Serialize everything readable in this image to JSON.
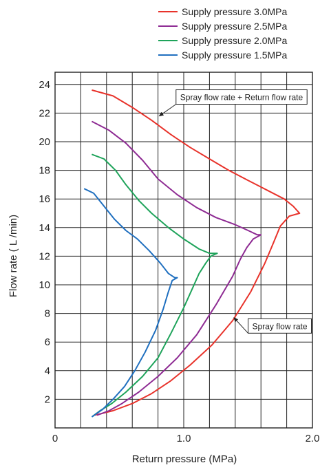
{
  "chart_data": {
    "type": "line",
    "title": "",
    "xlabel": "Return pressure (MPa)",
    "ylabel": "Flow rate ( L /min)",
    "xlim": [
      0,
      2.0
    ],
    "ylim": [
      0,
      25
    ],
    "grid": true,
    "legend_position": "top-right",
    "x_tick_labels": [
      {
        "value": 0,
        "label": "0"
      },
      {
        "value": 1.0,
        "label": "1.0"
      },
      {
        "value": 2.0,
        "label": "2.0"
      }
    ],
    "y_tick_labels": [
      {
        "value": 2,
        "label": "2"
      },
      {
        "value": 4,
        "label": "4"
      },
      {
        "value": 6,
        "label": "6"
      },
      {
        "value": 8,
        "label": "8"
      },
      {
        "value": 10,
        "label": "10"
      },
      {
        "value": 12,
        "label": "12"
      },
      {
        "value": 14,
        "label": "14"
      },
      {
        "value": 16,
        "label": "16"
      },
      {
        "value": 18,
        "label": "18"
      },
      {
        "value": 20,
        "label": "20"
      },
      {
        "value": 22,
        "label": "22"
      },
      {
        "value": 24,
        "label": "24"
      }
    ],
    "series": [
      {
        "name": "Supply pressure 3.0MPa",
        "color": "#e8322a",
        "points": [
          [
            0.29,
            23.6
          ],
          [
            0.45,
            23.2
          ],
          [
            0.6,
            22.4
          ],
          [
            0.75,
            21.5
          ],
          [
            0.9,
            20.5
          ],
          [
            1.05,
            19.6
          ],
          [
            1.2,
            18.8
          ],
          [
            1.35,
            18.0
          ],
          [
            1.5,
            17.3
          ],
          [
            1.65,
            16.6
          ],
          [
            1.78,
            16.0
          ],
          [
            1.85,
            15.5
          ],
          [
            1.9,
            15.0
          ],
          [
            1.82,
            14.8
          ],
          [
            1.75,
            14.1
          ],
          [
            1.7,
            13.0
          ],
          [
            1.63,
            11.5
          ],
          [
            1.52,
            9.5
          ],
          [
            1.38,
            7.5
          ],
          [
            1.22,
            5.8
          ],
          [
            1.05,
            4.4
          ],
          [
            0.9,
            3.3
          ],
          [
            0.75,
            2.4
          ],
          [
            0.6,
            1.7
          ],
          [
            0.45,
            1.2
          ],
          [
            0.36,
            1.0
          ],
          [
            0.31,
            0.9
          ]
        ]
      },
      {
        "name": "Supply pressure 2.5MPa",
        "color": "#8e2b93",
        "points": [
          [
            0.29,
            21.4
          ],
          [
            0.42,
            20.8
          ],
          [
            0.55,
            19.9
          ],
          [
            0.68,
            18.7
          ],
          [
            0.8,
            17.4
          ],
          [
            0.95,
            16.3
          ],
          [
            1.1,
            15.4
          ],
          [
            1.25,
            14.7
          ],
          [
            1.4,
            14.2
          ],
          [
            1.5,
            13.8
          ],
          [
            1.57,
            13.5
          ],
          [
            1.6,
            13.5
          ],
          [
            1.54,
            13.2
          ],
          [
            1.49,
            12.6
          ],
          [
            1.44,
            11.8
          ],
          [
            1.38,
            10.6
          ],
          [
            1.25,
            8.6
          ],
          [
            1.1,
            6.5
          ],
          [
            0.95,
            4.9
          ],
          [
            0.8,
            3.6
          ],
          [
            0.65,
            2.5
          ],
          [
            0.52,
            1.7
          ],
          [
            0.42,
            1.2
          ],
          [
            0.33,
            0.9
          ]
        ]
      },
      {
        "name": "Supply pressure 2.0MPa",
        "color": "#1ea35a",
        "points": [
          [
            0.29,
            19.1
          ],
          [
            0.38,
            18.8
          ],
          [
            0.47,
            18.0
          ],
          [
            0.55,
            17.0
          ],
          [
            0.65,
            15.9
          ],
          [
            0.75,
            15.0
          ],
          [
            0.88,
            14.0
          ],
          [
            1.0,
            13.2
          ],
          [
            1.12,
            12.5
          ],
          [
            1.2,
            12.2
          ],
          [
            1.26,
            12.2
          ],
          [
            1.21,
            12.0
          ],
          [
            1.17,
            11.5
          ],
          [
            1.12,
            10.8
          ],
          [
            1.07,
            9.8
          ],
          [
            1.0,
            8.4
          ],
          [
            0.9,
            6.6
          ],
          [
            0.8,
            4.9
          ],
          [
            0.68,
            3.6
          ],
          [
            0.55,
            2.5
          ],
          [
            0.44,
            1.7
          ],
          [
            0.35,
            1.2
          ],
          [
            0.29,
            0.8
          ]
        ]
      },
      {
        "name": "Supply pressure 1.5MPa",
        "color": "#1f6fbf",
        "points": [
          [
            0.23,
            16.7
          ],
          [
            0.3,
            16.4
          ],
          [
            0.38,
            15.5
          ],
          [
            0.46,
            14.6
          ],
          [
            0.55,
            13.8
          ],
          [
            0.64,
            13.2
          ],
          [
            0.73,
            12.4
          ],
          [
            0.82,
            11.5
          ],
          [
            0.88,
            10.8
          ],
          [
            0.93,
            10.5
          ],
          [
            0.95,
            10.5
          ],
          [
            0.91,
            10.3
          ],
          [
            0.88,
            9.5
          ],
          [
            0.84,
            8.3
          ],
          [
            0.78,
            6.8
          ],
          [
            0.7,
            5.3
          ],
          [
            0.62,
            4.0
          ],
          [
            0.54,
            2.9
          ],
          [
            0.45,
            2.0
          ],
          [
            0.37,
            1.3
          ],
          [
            0.29,
            0.8
          ]
        ]
      }
    ],
    "annotations": [
      {
        "text": "Spray flow rate + Return flow rate",
        "x": 0.81,
        "y": 21.8,
        "box_x": 0.94,
        "box_y": 23.1
      },
      {
        "text": "Spray flow rate",
        "x": 1.39,
        "y": 7.7,
        "box_x": 1.5,
        "box_y": 7.1
      }
    ]
  }
}
